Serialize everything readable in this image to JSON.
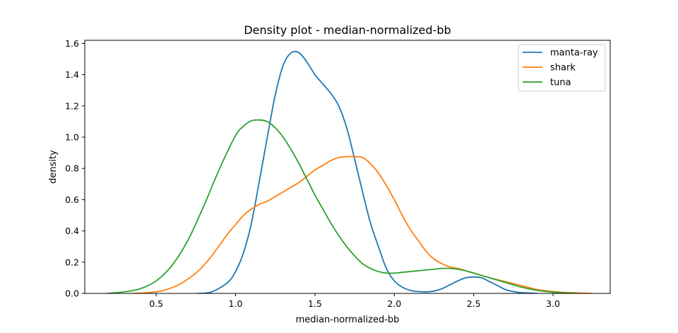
{
  "chart_data": {
    "type": "line",
    "title": "Density plot - median-normalized-bb",
    "xlabel": "median-normalized-bb",
    "ylabel": "density",
    "xlim": [
      0.05,
      3.36
    ],
    "ylim": [
      0.0,
      1.62
    ],
    "x_ticks": [
      0.5,
      1.0,
      1.5,
      2.0,
      2.5,
      3.0
    ],
    "x_tick_labels": [
      "0.5",
      "1.0",
      "1.5",
      "2.0",
      "2.5",
      "3.0"
    ],
    "y_ticks": [
      0.0,
      0.2,
      0.4,
      0.6,
      0.8,
      1.0,
      1.2,
      1.4,
      1.6
    ],
    "y_tick_labels": [
      "0.0",
      "0.2",
      "0.4",
      "0.6",
      "0.8",
      "1.0",
      "1.2",
      "1.4",
      "1.6"
    ],
    "grid": false,
    "legend_position": "top-right",
    "series": [
      {
        "name": "manta-ray",
        "color": "#1f77b4",
        "x": [
          0.76,
          0.85,
          0.95,
          1.0,
          1.05,
          1.1,
          1.15,
          1.2,
          1.25,
          1.3,
          1.35,
          1.4,
          1.45,
          1.5,
          1.55,
          1.6,
          1.65,
          1.7,
          1.75,
          1.8,
          1.85,
          1.9,
          1.95,
          2.0,
          2.05,
          2.1,
          2.15,
          2.2,
          2.25,
          2.3,
          2.35,
          2.4,
          2.45,
          2.5,
          2.55,
          2.6,
          2.65,
          2.7,
          2.75,
          2.8,
          2.9
        ],
        "y": [
          0.0,
          0.01,
          0.07,
          0.14,
          0.26,
          0.45,
          0.72,
          1.0,
          1.27,
          1.46,
          1.54,
          1.54,
          1.48,
          1.4,
          1.34,
          1.28,
          1.2,
          1.06,
          0.86,
          0.65,
          0.45,
          0.3,
          0.16,
          0.08,
          0.04,
          0.02,
          0.012,
          0.01,
          0.015,
          0.03,
          0.055,
          0.08,
          0.1,
          0.105,
          0.1,
          0.075,
          0.05,
          0.025,
          0.012,
          0.005,
          0.0
        ]
      },
      {
        "name": "shark",
        "color": "#ff7f0e",
        "x": [
          0.35,
          0.45,
          0.55,
          0.65,
          0.75,
          0.8,
          0.85,
          0.9,
          0.95,
          1.0,
          1.05,
          1.1,
          1.15,
          1.2,
          1.25,
          1.3,
          1.35,
          1.4,
          1.45,
          1.5,
          1.55,
          1.6,
          1.65,
          1.7,
          1.75,
          1.8,
          1.85,
          1.9,
          1.95,
          2.0,
          2.05,
          2.1,
          2.15,
          2.2,
          2.25,
          2.3,
          2.35,
          2.4,
          2.45,
          2.5,
          2.6,
          2.7,
          2.8,
          2.9,
          3.0,
          3.1,
          3.24
        ],
        "y": [
          0.0,
          0.005,
          0.02,
          0.06,
          0.13,
          0.18,
          0.24,
          0.31,
          0.38,
          0.44,
          0.5,
          0.54,
          0.57,
          0.59,
          0.62,
          0.65,
          0.68,
          0.71,
          0.75,
          0.79,
          0.82,
          0.85,
          0.87,
          0.875,
          0.875,
          0.87,
          0.83,
          0.77,
          0.69,
          0.6,
          0.5,
          0.41,
          0.34,
          0.27,
          0.22,
          0.19,
          0.17,
          0.16,
          0.145,
          0.13,
          0.1,
          0.075,
          0.05,
          0.025,
          0.012,
          0.005,
          0.0
        ]
      },
      {
        "name": "tuna",
        "color": "#2ca02c",
        "x": [
          0.19,
          0.3,
          0.4,
          0.5,
          0.6,
          0.7,
          0.8,
          0.9,
          1.0,
          1.05,
          1.1,
          1.15,
          1.2,
          1.25,
          1.3,
          1.35,
          1.4,
          1.45,
          1.5,
          1.55,
          1.6,
          1.65,
          1.7,
          1.75,
          1.8,
          1.85,
          1.9,
          1.95,
          2.0,
          2.05,
          2.1,
          2.15,
          2.2,
          2.25,
          2.3,
          2.35,
          2.4,
          2.45,
          2.5,
          2.6,
          2.7,
          2.8,
          2.9,
          3.0,
          3.15
        ],
        "y": [
          0.0,
          0.01,
          0.03,
          0.08,
          0.18,
          0.34,
          0.56,
          0.8,
          1.01,
          1.07,
          1.105,
          1.11,
          1.1,
          1.06,
          1.0,
          0.92,
          0.83,
          0.73,
          0.63,
          0.54,
          0.45,
          0.37,
          0.3,
          0.24,
          0.19,
          0.16,
          0.14,
          0.13,
          0.13,
          0.135,
          0.14,
          0.145,
          0.15,
          0.155,
          0.16,
          0.16,
          0.155,
          0.145,
          0.13,
          0.1,
          0.07,
          0.04,
          0.02,
          0.008,
          0.0
        ]
      }
    ]
  }
}
